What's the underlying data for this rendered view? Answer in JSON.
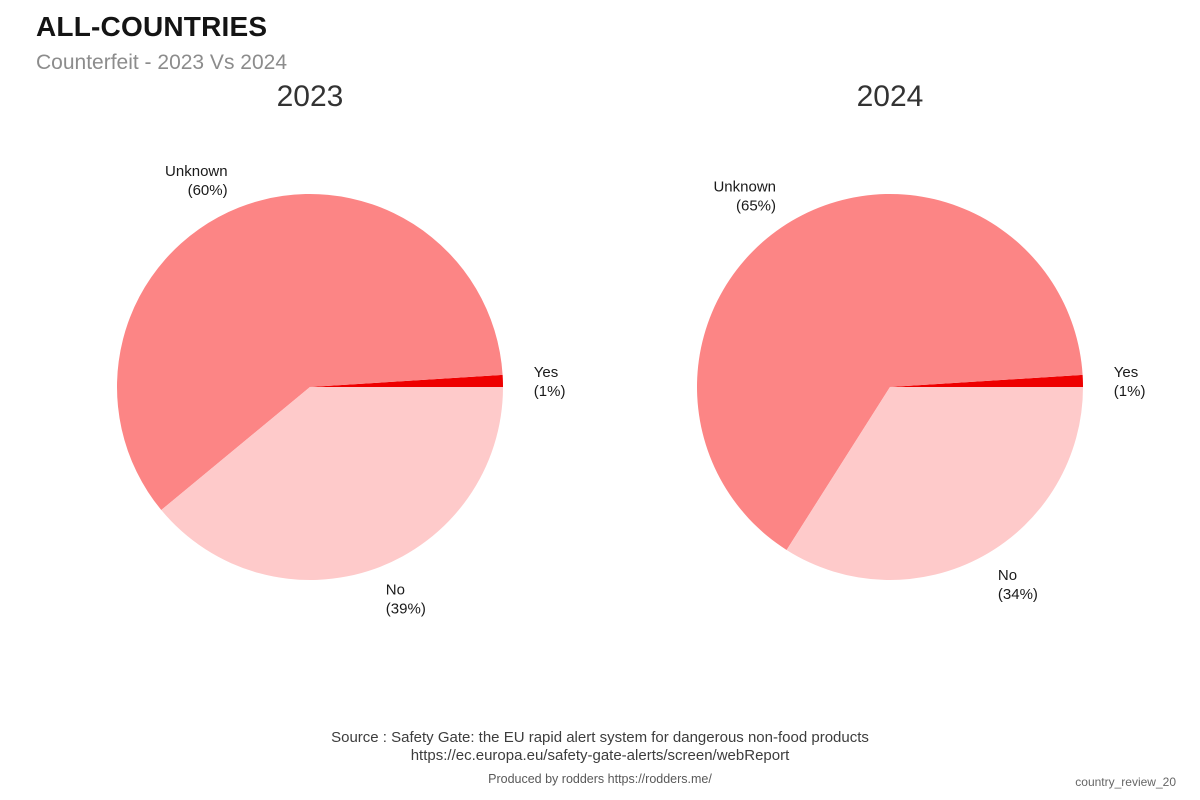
{
  "header": {
    "title": "ALL-COUNTRIES",
    "subtitle": "Counterfeit - 2023 Vs 2024"
  },
  "chart_data": [
    {
      "type": "pie",
      "title": "2023",
      "labels": [
        "Yes",
        "Unknown",
        "No"
      ],
      "values": [
        1,
        60,
        39
      ],
      "unit": "%",
      "colors": {
        "Yes": "#ee0000",
        "Unknown": "#fc8585",
        "No": "#fecaca"
      },
      "start_angle_deg": 0,
      "direction": "counterclockwise",
      "legend": "none",
      "label_format": "name_newline_percent"
    },
    {
      "type": "pie",
      "title": "2024",
      "labels": [
        "Yes",
        "Unknown",
        "No"
      ],
      "values": [
        1,
        65,
        34
      ],
      "unit": "%",
      "colors": {
        "Yes": "#ee0000",
        "Unknown": "#fc8585",
        "No": "#fecaca"
      },
      "start_angle_deg": 0,
      "direction": "counterclockwise",
      "legend": "none",
      "label_format": "name_newline_percent"
    }
  ],
  "footer": {
    "source_line1": "Source : Safety Gate: the EU rapid alert system for dangerous non-food products",
    "source_line2": "https://ec.europa.eu/safety-gate-alerts/screen/webReport",
    "produced_by": "Produced by rodders https://rodders.me/",
    "watermark": "country_review_20"
  }
}
